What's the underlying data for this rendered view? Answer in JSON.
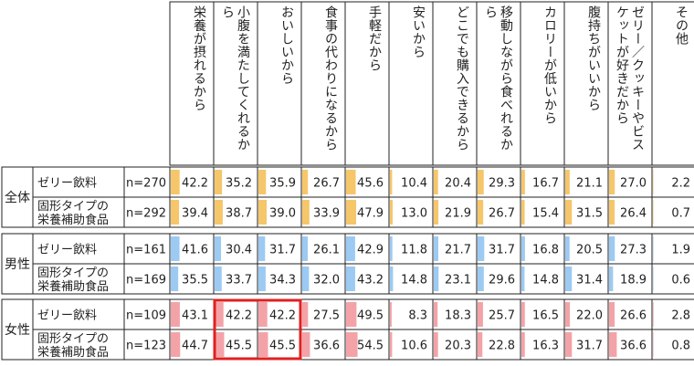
{
  "chart_data": {
    "type": "table",
    "columns": [
      "栄養が摂れるから",
      "小腹を満たしてくれるから",
      "おいしいから",
      "食事の代わりになるから",
      "手軽だから",
      "安いから",
      "どこでも購入できるから",
      "移動しながら食べれるから",
      "カロリーが低いから",
      "腹持ちがいいから",
      "ゼリー／クッキーやビスケットが好きだから",
      "その他"
    ],
    "groups": [
      {
        "name": "全体",
        "color": "#f5c66a",
        "rows": [
          {
            "label": "ゼリー飲料",
            "n": "n=270",
            "values": [
              42.2,
              35.2,
              35.9,
              26.7,
              45.6,
              10.4,
              20.4,
              29.3,
              16.7,
              21.1,
              27.0,
              2.2
            ],
            "labels": [
              "42.2",
              "35.2",
              "35.9",
              "26.7",
              "45.6",
              "10.4",
              "20.4",
              "29.3",
              "16.7",
              "21.1",
              "27.0",
              "2.2"
            ]
          },
          {
            "label": "固形タイプの\n栄養補助食品",
            "n": "n=292",
            "values": [
              39.4,
              38.7,
              39.0,
              33.9,
              47.9,
              13.0,
              21.9,
              26.7,
              15.4,
              31.5,
              26.4,
              0.7
            ],
            "labels": [
              "39.4",
              "38.7",
              "39.0",
              "33.9",
              "47.9",
              "13.0",
              "21.9",
              "26.7",
              "15.4",
              "31.5",
              "26.4",
              "0.7"
            ]
          }
        ]
      },
      {
        "name": "男性",
        "color": "#9ccaf2",
        "rows": [
          {
            "label": "ゼリー飲料",
            "n": "n=161",
            "values": [
              41.6,
              30.4,
              31.7,
              26.1,
              42.9,
              11.8,
              21.7,
              31.7,
              16.8,
              20.5,
              27.3,
              1.9
            ],
            "labels": [
              "41.6",
              "30.4",
              "31.7",
              "26.1",
              "42.9",
              "11.8",
              "21.7",
              "31.7",
              "16.8",
              "20.5",
              "27.3",
              "1.9"
            ]
          },
          {
            "label": "固形タイプの\n栄養補助食品",
            "n": "n=169",
            "values": [
              35.5,
              33.7,
              34.3,
              32.0,
              43.2,
              14.8,
              23.1,
              29.6,
              14.8,
              31.4,
              18.9,
              0.6
            ],
            "labels": [
              "35.5",
              "33.7",
              "34.3",
              "32.0",
              "43.2",
              "14.8",
              "23.1",
              "29.6",
              "14.8",
              "31.4",
              "18.9",
              "0.6"
            ]
          }
        ]
      },
      {
        "name": "女性",
        "color": "#f3a3a8",
        "rows": [
          {
            "label": "ゼリー飲料",
            "n": "n=109",
            "values": [
              43.1,
              42.2,
              42.2,
              27.5,
              49.5,
              8.3,
              18.3,
              25.7,
              16.5,
              22.0,
              26.6,
              2.8
            ],
            "labels": [
              "43.1",
              "42.2",
              "42.2",
              "27.5",
              "49.5",
              "8.3",
              "18.3",
              "25.7",
              "16.5",
              "22.0",
              "26.6",
              "2.8"
            ]
          },
          {
            "label": "固形タイプの\n栄養補助食品",
            "n": "n=123",
            "values": [
              44.7,
              45.5,
              45.5,
              36.6,
              54.5,
              10.6,
              20.3,
              22.8,
              16.3,
              31.7,
              36.6,
              0.8
            ],
            "labels": [
              "44.7",
              "45.5",
              "45.5",
              "36.6",
              "54.5",
              "10.6",
              "20.3",
              "22.8",
              "16.3",
              "31.7",
              "36.6",
              "0.8"
            ]
          }
        ]
      }
    ],
    "value_max": 100,
    "highlight": {
      "group": 2,
      "rows": [
        0,
        1
      ],
      "columns": [
        1,
        2
      ],
      "color": "#e02020"
    }
  }
}
